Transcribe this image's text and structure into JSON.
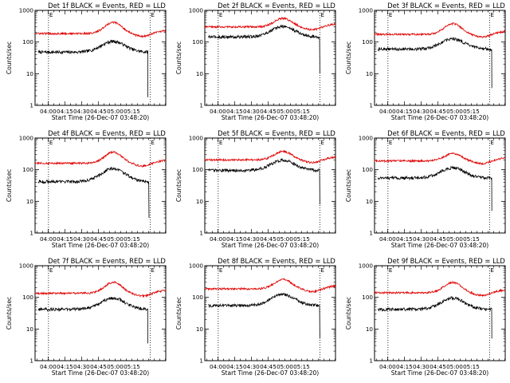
{
  "figure": {
    "ylabel": "Counts/sec",
    "xlabel": "Start Time (26-Dec-07 03:48:20)",
    "x_tick_labels": [
      "04:00",
      "04:15",
      "04:30",
      "04:45",
      "05:00",
      "05:15"
    ],
    "y_tick_labels": [
      "1",
      "10",
      "100",
      "1000"
    ],
    "marker_labels": [
      "E",
      "E"
    ],
    "colors": {
      "events": "#000000",
      "lld": "#e00000"
    }
  },
  "chart_data": [
    {
      "type": "line",
      "title": "Det 1f BLACK = Events, RED = LLD",
      "ylim": [
        1,
        1000
      ],
      "log_y": true,
      "x_unit": "minutes since 03:48:20",
      "vlines": [
        12,
        103
      ],
      "series": [
        {
          "name": "Events",
          "color": "#000000",
          "start": 3.0,
          "end": 101.0,
          "base": 48,
          "peak": 105,
          "drop": 1.8
        },
        {
          "name": "LLD",
          "color": "#e00000",
          "start": 0,
          "end": 117,
          "base": 185,
          "peak": 420
        }
      ]
    },
    {
      "type": "line",
      "title": "Det 2f BLACK = Events, RED = LLD",
      "ylim": [
        1,
        1000
      ],
      "log_y": true,
      "x_unit": "minutes since 03:48:20",
      "vlines": [
        12,
        103
      ],
      "series": [
        {
          "name": "Events",
          "color": "#000000",
          "start": 3.0,
          "end": 103.0,
          "base": 145,
          "peak": 310,
          "drop": 10
        },
        {
          "name": "LLD",
          "color": "#e00000",
          "start": 0,
          "end": 117,
          "base": 300,
          "peak": 560
        }
      ]
    },
    {
      "type": "line",
      "title": "Det 3f BLACK = Events, RED = LLD",
      "ylim": [
        1,
        1000
      ],
      "log_y": true,
      "x_unit": "minutes since 03:48:20",
      "vlines": [
        12,
        103
      ],
      "series": [
        {
          "name": "Events",
          "color": "#000000",
          "start": 3.0,
          "end": 105.0,
          "base": 60,
          "peak": 125,
          "drop": 3.5
        },
        {
          "name": "LLD",
          "color": "#e00000",
          "start": 0,
          "end": 117,
          "base": 175,
          "peak": 380
        }
      ]
    },
    {
      "type": "line",
      "title": "Det 4f BLACK = Events, RED = LLD",
      "ylim": [
        1,
        1000
      ],
      "log_y": true,
      "x_unit": "minutes since 03:48:20",
      "vlines": [
        12,
        103
      ],
      "series": [
        {
          "name": "Events",
          "color": "#000000",
          "start": 3.0,
          "end": 102.0,
          "base": 42,
          "peak": 110,
          "drop": 3.0
        },
        {
          "name": "LLD",
          "color": "#e00000",
          "start": 0,
          "end": 117,
          "base": 160,
          "peak": 360
        }
      ]
    },
    {
      "type": "line",
      "title": "Det 5f BLACK = Events, RED = LLD",
      "ylim": [
        1,
        1000
      ],
      "log_y": true,
      "x_unit": "minutes since 03:48:20",
      "vlines": [
        12,
        103
      ],
      "series": [
        {
          "name": "Events",
          "color": "#000000",
          "start": 3.0,
          "end": 103.0,
          "base": 95,
          "peak": 200,
          "drop": 8
        },
        {
          "name": "LLD",
          "color": "#e00000",
          "start": 0,
          "end": 117,
          "base": 205,
          "peak": 380
        }
      ]
    },
    {
      "type": "line",
      "title": "Det 6f BLACK = Events, RED = LLD",
      "ylim": [
        1,
        1000
      ],
      "log_y": true,
      "x_unit": "minutes since 03:48:20",
      "vlines": [
        12,
        103
      ],
      "series": [
        {
          "name": "Events",
          "color": "#000000",
          "start": 3.0,
          "end": 105.0,
          "base": 55,
          "peak": 115,
          "drop": 5
        },
        {
          "name": "LLD",
          "color": "#e00000",
          "start": 0,
          "end": 117,
          "base": 190,
          "peak": 320
        }
      ]
    },
    {
      "type": "line",
      "title": "Det 7f BLACK = Events, RED = LLD",
      "ylim": [
        1,
        1000
      ],
      "log_y": true,
      "x_unit": "minutes since 03:48:20",
      "vlines": [
        12,
        103
      ],
      "series": [
        {
          "name": "Events",
          "color": "#000000",
          "start": 3.0,
          "end": 101.0,
          "base": 42,
          "peak": 95,
          "drop": 3.5
        },
        {
          "name": "LLD",
          "color": "#e00000",
          "start": 0,
          "end": 117,
          "base": 135,
          "peak": 300
        }
      ]
    },
    {
      "type": "line",
      "title": "Det 8f BLACK = Events, RED = LLD",
      "ylim": [
        1,
        1000
      ],
      "log_y": true,
      "x_unit": "minutes since 03:48:20",
      "vlines": [
        12,
        103
      ],
      "series": [
        {
          "name": "Events",
          "color": "#000000",
          "start": 3.0,
          "end": 103.0,
          "base": 55,
          "peak": 125,
          "drop": 5
        },
        {
          "name": "LLD",
          "color": "#e00000",
          "start": 0,
          "end": 117,
          "base": 185,
          "peak": 370
        }
      ]
    },
    {
      "type": "line",
      "title": "Det 9f BLACK = Events, RED = LLD",
      "ylim": [
        1,
        1000
      ],
      "log_y": true,
      "x_unit": "minutes since 03:48:20",
      "vlines": [
        12,
        103
      ],
      "series": [
        {
          "name": "Events",
          "color": "#000000",
          "start": 3.0,
          "end": 105.0,
          "base": 42,
          "peak": 95,
          "drop": 5
        },
        {
          "name": "LLD",
          "color": "#e00000",
          "start": 0,
          "end": 117,
          "base": 140,
          "peak": 300
        }
      ]
    }
  ]
}
